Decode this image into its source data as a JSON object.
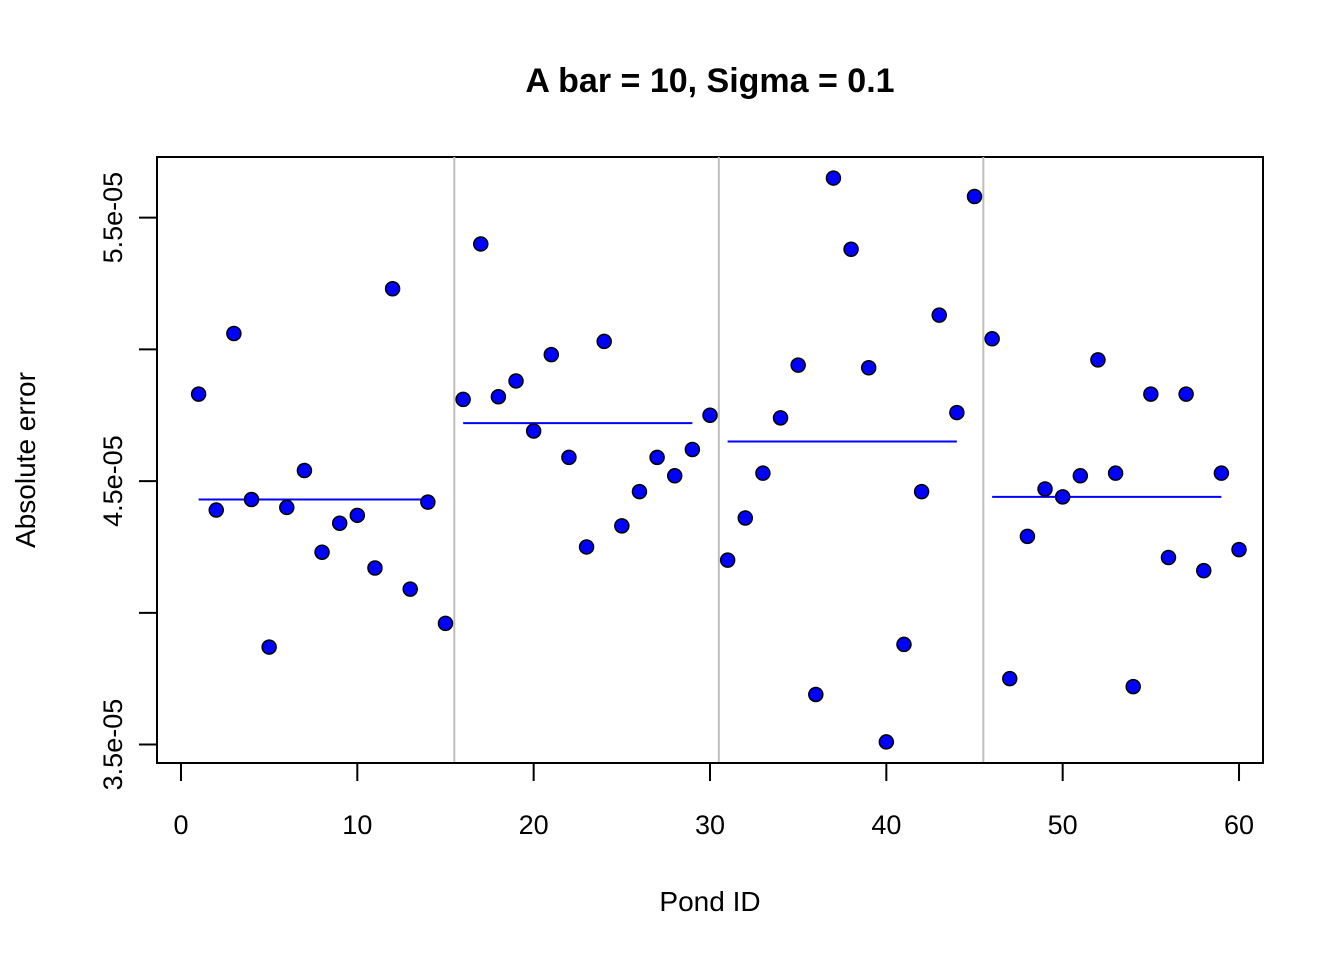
{
  "chart_data": {
    "type": "scatter",
    "title": "A bar = 10, Sigma = 0.1",
    "xlabel": "Pond ID",
    "ylabel": "Absolute error",
    "xlim": [
      -1.36,
      61.36
    ],
    "ylim": [
      3.43e-05,
      5.73e-05
    ],
    "x_ticks": [
      0,
      10,
      20,
      30,
      40,
      50,
      60
    ],
    "x_tick_labels": [
      "0",
      "10",
      "20",
      "30",
      "40",
      "50",
      "60"
    ],
    "y_ticks": [
      3.5e-05,
      4e-05,
      4.5e-05,
      5e-05,
      5.5e-05
    ],
    "y_tick_labels": [
      "3.5e-05",
      "",
      "4.5e-05",
      "",
      "5.5e-05"
    ],
    "grid": false,
    "legend": "none",
    "point_color": "#0000ff",
    "mean_line_color": "#0000ff",
    "separator_color": "#bebebe",
    "separators_x": [
      15.5,
      30.5,
      45.5
    ],
    "series": [
      {
        "x": [
          1,
          2,
          3,
          4,
          5,
          6,
          7,
          8,
          9,
          10,
          11,
          12,
          13,
          14,
          15,
          16,
          17,
          18,
          19,
          20,
          21,
          22,
          23,
          24,
          25,
          26,
          27,
          28,
          29,
          30,
          31,
          32,
          33,
          34,
          35,
          36,
          37,
          38,
          39,
          40,
          41,
          42,
          43,
          44,
          45,
          46,
          47,
          48,
          49,
          50,
          51,
          52,
          53,
          54,
          55,
          56,
          57,
          58,
          59,
          60
        ],
        "values": [
          4.83e-05,
          4.39e-05,
          5.06e-05,
          4.43e-05,
          3.87e-05,
          4.4e-05,
          4.54e-05,
          4.23e-05,
          4.34e-05,
          4.37e-05,
          4.17e-05,
          5.23e-05,
          4.09e-05,
          4.42e-05,
          3.96e-05,
          4.81e-05,
          5.4e-05,
          4.82e-05,
          4.88e-05,
          4.69e-05,
          4.98e-05,
          4.59e-05,
          4.25e-05,
          5.03e-05,
          4.33e-05,
          4.46e-05,
          4.59e-05,
          4.52e-05,
          4.62e-05,
          4.75e-05,
          4.2e-05,
          4.36e-05,
          4.53e-05,
          4.74e-05,
          4.94e-05,
          3.69e-05,
          5.65e-05,
          5.38e-05,
          4.93e-05,
          3.51e-05,
          3.88e-05,
          4.46e-05,
          5.13e-05,
          4.76e-05,
          5.58e-05,
          5.04e-05,
          3.75e-05,
          4.29e-05,
          4.47e-05,
          4.44e-05,
          4.52e-05,
          4.96e-05,
          4.53e-05,
          3.72e-05,
          4.83e-05,
          4.21e-05,
          4.83e-05,
          4.16e-05,
          4.53e-05,
          4.24e-05
        ]
      }
    ],
    "group_means": [
      {
        "x_start": 1,
        "x_end": 14,
        "value": 4.43e-05
      },
      {
        "x_start": 16,
        "x_end": 29,
        "value": 4.72e-05
      },
      {
        "x_start": 31,
        "x_end": 44,
        "value": 4.65e-05
      },
      {
        "x_start": 46,
        "x_end": 59,
        "value": 4.44e-05
      }
    ]
  }
}
